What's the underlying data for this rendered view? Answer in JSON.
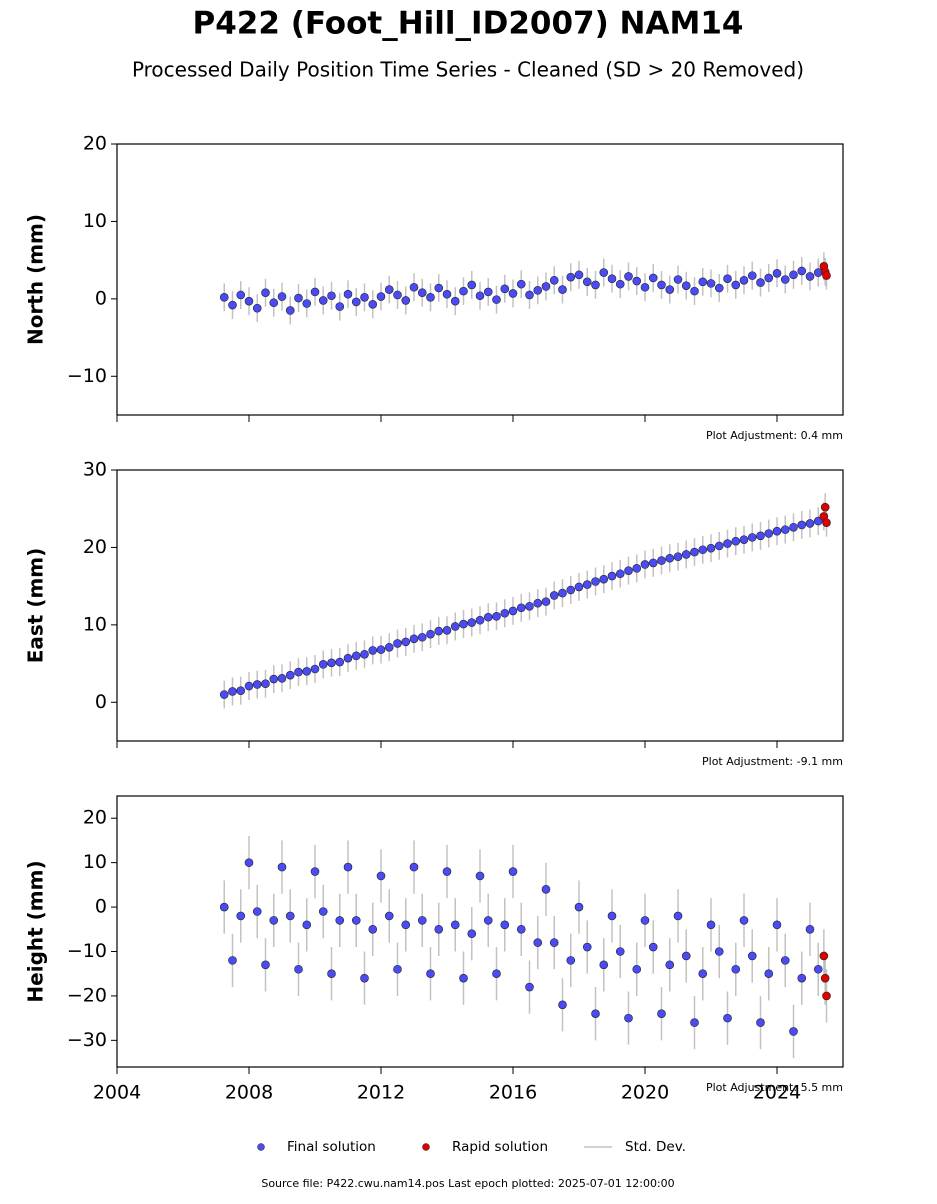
{
  "title": "P422 (Foot_Hill_ID2007) NAM14",
  "subtitle": "Processed Daily Position Time Series - Cleaned (SD > 20 Removed)",
  "std_dev_label": "Std. Dev.",
  "footer": "Source file: P422.cwu.nam14.pos  Last epoch plotted: 2025-07-01 12:00:00",
  "chart_data": [
    {
      "type": "scatter",
      "y_label": "North (mm)",
      "annotation": "Plot Adjustment: 0.4 mm",
      "xlim": [
        2004,
        2026
      ],
      "xticks": [
        2004,
        2008,
        2012,
        2016,
        2020,
        2024
      ],
      "xtick_labels": false,
      "ylim": [
        -15,
        20
      ],
      "yticks": [
        {
          "value": -10,
          "label": "−10"
        },
        0,
        10,
        20
      ],
      "error": 1.8,
      "series": [
        {
          "name": "Final solution",
          "color": "#4b4bf5",
          "x": [
            2007.25,
            2007.5,
            2007.75,
            2008,
            2008.25,
            2008.5,
            2008.75,
            2009,
            2009.25,
            2009.5,
            2009.75,
            2010,
            2010.25,
            2010.5,
            2010.75,
            2011,
            2011.25,
            2011.5,
            2011.75,
            2012,
            2012.25,
            2012.5,
            2012.75,
            2013,
            2013.25,
            2013.5,
            2013.75,
            2014,
            2014.25,
            2014.5,
            2014.75,
            2015,
            2015.25,
            2015.5,
            2015.75,
            2016,
            2016.25,
            2016.5,
            2016.75,
            2017,
            2017.25,
            2017.5,
            2017.75,
            2018,
            2018.25,
            2018.5,
            2018.75,
            2019,
            2019.25,
            2019.5,
            2019.75,
            2020,
            2020.25,
            2020.5,
            2020.75,
            2021,
            2021.25,
            2021.5,
            2021.75,
            2022,
            2022.25,
            2022.5,
            2022.75,
            2023,
            2023.25,
            2023.5,
            2023.75,
            2024,
            2024.25,
            2024.5,
            2024.75,
            2025,
            2025.25
          ],
          "values": [
            0.2,
            -0.8,
            0.5,
            -0.3,
            -1.2,
            0.8,
            -0.5,
            0.3,
            -1.5,
            0.1,
            -0.6,
            0.9,
            -0.2,
            0.4,
            -1.0,
            0.6,
            -0.4,
            0.2,
            -0.7,
            0.3,
            1.2,
            0.5,
            -0.2,
            1.5,
            0.8,
            0.2,
            1.4,
            0.6,
            -0.3,
            1.0,
            1.8,
            0.4,
            0.9,
            -0.1,
            1.3,
            0.7,
            1.9,
            0.5,
            1.1,
            1.6,
            2.4,
            1.2,
            2.8,
            3.1,
            2.2,
            1.8,
            3.4,
            2.6,
            1.9,
            2.9,
            2.3,
            1.5,
            2.7,
            1.8,
            1.2,
            2.5,
            1.7,
            1.0,
            2.2,
            2.0,
            1.4,
            2.6,
            1.8,
            2.4,
            3.0,
            2.1,
            2.7,
            3.3,
            2.5,
            3.1,
            3.6,
            2.9,
            3.4
          ]
        },
        {
          "name": "Rapid solution",
          "color": "#e00000",
          "x": [
            2025.42,
            2025.46,
            2025.5
          ],
          "values": [
            4.2,
            3.5,
            3.0
          ]
        }
      ]
    },
    {
      "type": "scatter",
      "y_label": "East (mm)",
      "annotation": "Plot Adjustment: -9.1 mm",
      "xlim": [
        2004,
        2026
      ],
      "xticks": [
        2004,
        2008,
        2012,
        2016,
        2020,
        2024
      ],
      "xtick_labels": false,
      "ylim": [
        -5,
        30
      ],
      "yticks": [
        0,
        10,
        20,
        30
      ],
      "error": 1.8,
      "series": [
        {
          "name": "Final solution",
          "color": "#4b4bf5",
          "x": [
            2007.25,
            2007.5,
            2007.75,
            2008,
            2008.25,
            2008.5,
            2008.75,
            2009,
            2009.25,
            2009.5,
            2009.75,
            2010,
            2010.25,
            2010.5,
            2010.75,
            2011,
            2011.25,
            2011.5,
            2011.75,
            2012,
            2012.25,
            2012.5,
            2012.75,
            2013,
            2013.25,
            2013.5,
            2013.75,
            2014,
            2014.25,
            2014.5,
            2014.75,
            2015,
            2015.25,
            2015.5,
            2015.75,
            2016,
            2016.25,
            2016.5,
            2016.75,
            2017,
            2017.25,
            2017.5,
            2017.75,
            2018,
            2018.25,
            2018.5,
            2018.75,
            2019,
            2019.25,
            2019.5,
            2019.75,
            2020,
            2020.25,
            2020.5,
            2020.75,
            2021,
            2021.25,
            2021.5,
            2021.75,
            2022,
            2022.25,
            2022.5,
            2022.75,
            2023,
            2023.25,
            2023.5,
            2023.75,
            2024,
            2024.25,
            2024.5,
            2024.75,
            2025,
            2025.25
          ],
          "values": [
            1.0,
            1.4,
            1.5,
            2.1,
            2.3,
            2.4,
            3.0,
            3.1,
            3.5,
            3.9,
            4.0,
            4.3,
            4.9,
            5.1,
            5.2,
            5.7,
            6.0,
            6.2,
            6.7,
            6.8,
            7.1,
            7.6,
            7.8,
            8.2,
            8.4,
            8.8,
            9.2,
            9.3,
            9.8,
            10.1,
            10.3,
            10.6,
            11.0,
            11.1,
            11.5,
            11.8,
            12.2,
            12.4,
            12.8,
            13.0,
            13.8,
            14.1,
            14.5,
            14.9,
            15.2,
            15.6,
            15.9,
            16.3,
            16.6,
            17.0,
            17.3,
            17.8,
            18.0,
            18.3,
            18.6,
            18.8,
            19.1,
            19.4,
            19.7,
            19.9,
            20.2,
            20.5,
            20.8,
            21.0,
            21.3,
            21.5,
            21.8,
            22.1,
            22.3,
            22.6,
            22.9,
            23.1,
            23.4
          ]
        },
        {
          "name": "Rapid solution",
          "color": "#e00000",
          "x": [
            2025.42,
            2025.46,
            2025.5
          ],
          "values": [
            24.0,
            25.2,
            23.2
          ]
        }
      ]
    },
    {
      "type": "scatter",
      "y_label": "Height (mm)",
      "annotation": "Plot Adjustment: 5.5 mm",
      "xlim": [
        2004,
        2026
      ],
      "xticks": [
        2004,
        2008,
        2012,
        2016,
        2020,
        2024
      ],
      "xtick_labels": true,
      "ylim": [
        -36,
        25
      ],
      "yticks": [
        {
          "value": -30,
          "label": "−30"
        },
        {
          "value": -20,
          "label": "−20"
        },
        {
          "value": -10,
          "label": "−10"
        },
        0,
        10,
        20
      ],
      "error": 6,
      "series": [
        {
          "name": "Final solution",
          "color": "#4b4bf5",
          "x": [
            2007.25,
            2007.5,
            2007.75,
            2008,
            2008.25,
            2008.5,
            2008.75,
            2009,
            2009.25,
            2009.5,
            2009.75,
            2010,
            2010.25,
            2010.5,
            2010.75,
            2011,
            2011.25,
            2011.5,
            2011.75,
            2012,
            2012.25,
            2012.5,
            2012.75,
            2013,
            2013.25,
            2013.5,
            2013.75,
            2014,
            2014.25,
            2014.5,
            2014.75,
            2015,
            2015.25,
            2015.5,
            2015.75,
            2016,
            2016.25,
            2016.5,
            2016.75,
            2017,
            2017.25,
            2017.5,
            2017.75,
            2018,
            2018.25,
            2018.5,
            2018.75,
            2019,
            2019.25,
            2019.5,
            2019.75,
            2020,
            2020.25,
            2020.5,
            2020.75,
            2021,
            2021.25,
            2021.5,
            2021.75,
            2022,
            2022.25,
            2022.5,
            2022.75,
            2023,
            2023.25,
            2023.5,
            2023.75,
            2024,
            2024.25,
            2024.5,
            2024.75,
            2025,
            2025.25
          ],
          "values": [
            0,
            -12,
            -2,
            10,
            -1,
            -13,
            -3,
            9,
            -2,
            -14,
            -4,
            8,
            -1,
            -15,
            -3,
            9,
            -3,
            -16,
            -5,
            7,
            -2,
            -14,
            -4,
            9,
            -3,
            -15,
            -5,
            8,
            -4,
            -16,
            -6,
            7,
            -3,
            -15,
            -4,
            8,
            -5,
            -18,
            -8,
            4,
            -8,
            -22,
            -12,
            0,
            -9,
            -24,
            -13,
            -2,
            -10,
            -25,
            -14,
            -3,
            -9,
            -24,
            -13,
            -2,
            -11,
            -26,
            -15,
            -4,
            -10,
            -25,
            -14,
            -3,
            -11,
            -26,
            -15,
            -4,
            -12,
            -28,
            -16,
            -5,
            -14
          ]
        },
        {
          "name": "Rapid solution",
          "color": "#e00000",
          "x": [
            2025.42,
            2025.46,
            2025.5
          ],
          "values": [
            -11,
            -16,
            -20
          ]
        }
      ]
    }
  ]
}
